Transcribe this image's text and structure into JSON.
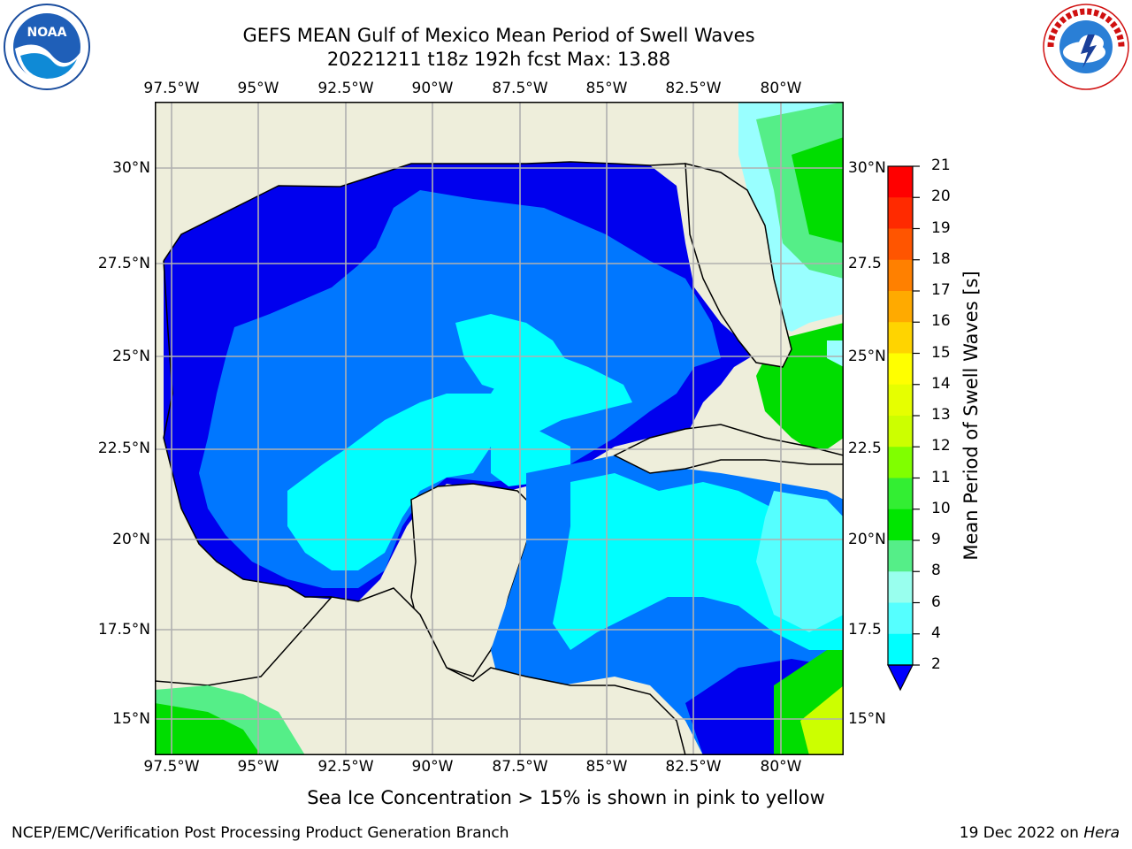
{
  "title_line1": "GEFS MEAN Gulf of Mexico Mean Period of Swell Waves",
  "title_line2": "20221211 t18z 192h fcst   Max: 13.88",
  "lon_labels": [
    "97.5°W",
    "95°W",
    "92.5°W",
    "90°W",
    "87.5°W",
    "85°W",
    "82.5°W",
    "80°W"
  ],
  "lat_labels_left": [
    "30°N",
    "27.5°N",
    "25°N",
    "22.5°N",
    "20°N",
    "17.5°N",
    "15°N"
  ],
  "lat_labels_right": [
    "30°N",
    "27.5",
    "25°N",
    "22.5",
    "20°N",
    "17.5",
    "15°N"
  ],
  "colorbar": {
    "title": "Mean Period of Swell Waves [s]",
    "ticks": [
      "21",
      "20",
      "19",
      "18",
      "17",
      "16",
      "15",
      "14",
      "13",
      "12",
      "11",
      "10",
      "9",
      "8",
      "6",
      "4",
      "2"
    ],
    "colors": [
      "#ff0000",
      "#ff2a00",
      "#ff5500",
      "#ff8000",
      "#ffaa00",
      "#ffd400",
      "#ffff00",
      "#e6ff00",
      "#ccff00",
      "#80ff00",
      "#33ee33",
      "#00e600",
      "#55ee88",
      "#99ffee",
      "#55ffff",
      "#00ffff",
      "#0080ff",
      "#0000ff"
    ]
  },
  "caption": "Sea Ice Concentration > 15% is shown in pink to yellow",
  "footer_left": "NCEP/EMC/Verification Post Processing Product Generation Branch",
  "footer_right_date": "19 Dec 2022 on",
  "footer_right_host": "Hera",
  "logos": {
    "left": "NOAA",
    "right": "NATIONAL WEATHER SERVICE"
  },
  "map_colors": {
    "land": "#eeeedb",
    "period_2_4": "#0077ff",
    "period_lt2": "#0000ee",
    "period_4_6": "#00ffff",
    "period_6_8": "#55ffff",
    "period_8_9": "#99ffff",
    "period_9_10": "#55ee88",
    "period_10_12": "#00dd00",
    "grid": "#b0b0b0"
  }
}
